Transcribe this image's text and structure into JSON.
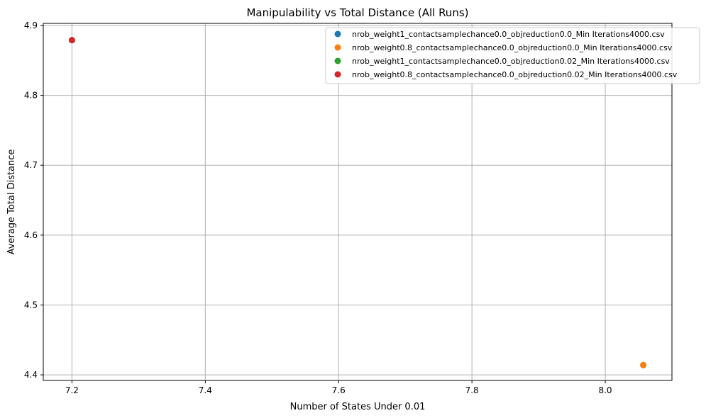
{
  "chart_data": {
    "type": "scatter",
    "title": "Manipulability vs Total Distance (All Runs)",
    "xlabel": "Number of States Under 0.01",
    "ylabel": "Average Total Distance",
    "xlim": [
      7.157,
      8.1
    ],
    "ylim": [
      4.392,
      4.903
    ],
    "xticks": [
      7.2,
      7.4,
      7.6,
      7.8,
      8.0
    ],
    "xtick_labels": [
      "7.2",
      "7.4",
      "7.6",
      "7.8",
      "8.0"
    ],
    "yticks": [
      4.4,
      4.5,
      4.6,
      4.7,
      4.8,
      4.9
    ],
    "ytick_labels": [
      "4.4",
      "4.5",
      "4.6",
      "4.7",
      "4.8",
      "4.9"
    ],
    "grid": true,
    "legend_position": "top-right",
    "series": [
      {
        "name": "nrob_weight1_contactsamplechance0.0_objreduction0.0_Min Iterations4000.csv",
        "color": "#1f77b4",
        "points": [
          [
            8.057,
            4.414
          ]
        ]
      },
      {
        "name": "nrob_weight0.8_contactsamplechance0.0_objreduction0.0_Min Iterations4000.csv",
        "color": "#ff7f0e",
        "points": [
          [
            8.057,
            4.414
          ]
        ]
      },
      {
        "name": "nrob_weight1_contactsamplechance0.0_objreduction0.02_Min Iterations4000.csv",
        "color": "#2ca02c",
        "points": [
          [
            7.2,
            4.879
          ]
        ]
      },
      {
        "name": "nrob_weight0.8_contactsamplechance0.0_objreduction0.02_Min Iterations4000.csv",
        "color": "#d62728",
        "points": [
          [
            7.2,
            4.879
          ]
        ]
      }
    ]
  }
}
